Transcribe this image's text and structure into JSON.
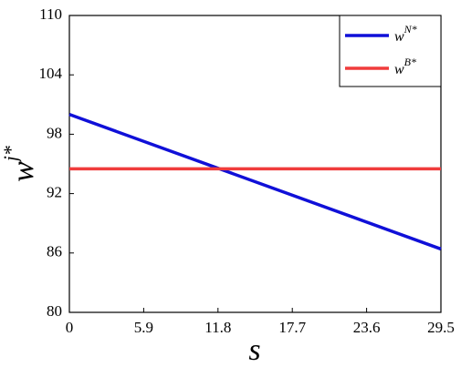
{
  "chart_data": {
    "type": "line",
    "x_label": "s",
    "y_label": "w",
    "y_label_sup": "j*",
    "x": [
      0,
      29.5
    ],
    "series": [
      {
        "name": "w",
        "name_sup": "N*",
        "color": "#1010d8",
        "values": [
          100,
          86.4
        ]
      },
      {
        "name": "w",
        "name_sup": "B*",
        "color": "#f03c3c",
        "values": [
          94.5,
          94.5
        ]
      }
    ],
    "xlim": [
      0,
      29.5
    ],
    "xticks": [
      0,
      5.9,
      11.8,
      17.7,
      23.6,
      29.5
    ],
    "ylim": [
      80,
      110
    ],
    "yticks": [
      80,
      86,
      92,
      98,
      104,
      110
    ],
    "grid": false,
    "legend": "top-right"
  }
}
